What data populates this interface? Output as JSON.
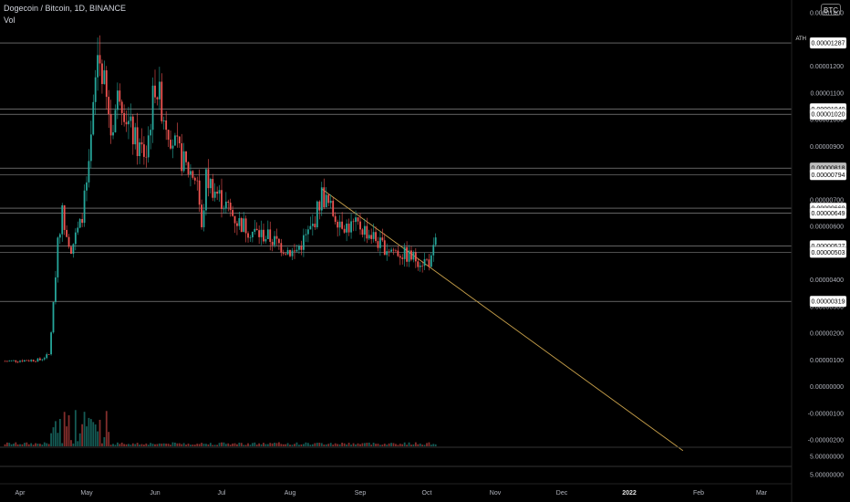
{
  "header": {
    "title": "Dogecoin / Bitcoin, 1D, BINANCE",
    "volume_label": "Vol",
    "currency": "BTC"
  },
  "colors": {
    "up": "#26a69a",
    "down": "#ef5350",
    "level_line": "#9e9e9e",
    "trendline": "#c8a04a",
    "axis_text": "#b2b5be"
  },
  "chart_data": {
    "type": "candlestick",
    "title": "Dogecoin / Bitcoin, 1D, BINANCE",
    "x_labels": [
      "Apr",
      "May",
      "Jun",
      "Jul",
      "Aug",
      "Sep",
      "Oct",
      "Nov",
      "Dec",
      "2022",
      "Feb",
      "Mar"
    ],
    "x_label_bold": "2022",
    "y_ticks": [
      1.4e-05,
      1.3e-05,
      1.2e-05,
      1.1e-05,
      1e-05,
      9e-06,
      8e-06,
      7e-06,
      6e-06,
      5e-06,
      4e-06,
      3e-06,
      2e-06,
      1e-06,
      0.0,
      -1e-06,
      -2e-06
    ],
    "y_tick_labels": [
      "0.00001400",
      "0.00001300",
      "0.00001200",
      "0.00001100",
      "0.00001000",
      "0.00000900",
      "0.00000800",
      "0.00000700",
      "0.00000600",
      "0.00000500",
      "0.00000400",
      "0.00000300",
      "0.00000200",
      "0.00000100",
      "0.00000000",
      "-0.00000100",
      "-0.00000200"
    ],
    "ylim": [
      -2e-06,
      1.4e-05
    ],
    "levels": [
      {
        "value": 1.287e-05,
        "label": "0.00001287",
        "tag": "ATH"
      },
      {
        "value": 1.04e-05,
        "label": "0.00001040"
      },
      {
        "value": 1.02e-05,
        "label": "0.00001020"
      },
      {
        "value": 8.18e-06,
        "label": "0.00000818",
        "highlight": true
      },
      {
        "value": 7.94e-06,
        "label": "0.00000794"
      },
      {
        "value": 6.68e-06,
        "label": "0.00000668"
      },
      {
        "value": 6.49e-06,
        "label": "0.00000649"
      },
      {
        "value": 5.27e-06,
        "label": "0.00000527"
      },
      {
        "value": 5.03e-06,
        "label": "0.00000503"
      },
      {
        "value": 3.19e-06,
        "label": "0.00000319"
      }
    ],
    "volume_scale_labels": [
      "5.00000000",
      "5.00000000"
    ],
    "trendline": {
      "from": {
        "date": "2021-08-15",
        "value": 7.4e-06
      },
      "to": {
        "date": "2022-01-25",
        "value": -2.4e-06
      }
    },
    "price_path": [
      {
        "date": "2021-03-25",
        "close": 9.5e-07
      },
      {
        "date": "2021-04-10",
        "close": 1e-06
      },
      {
        "date": "2021-04-14",
        "close": 1.2e-06
      },
      {
        "date": "2021-04-16",
        "close": 3e-06
      },
      {
        "date": "2021-04-18",
        "close": 5.6e-06
      },
      {
        "date": "2021-04-20",
        "close": 6.5e-06
      },
      {
        "date": "2021-04-24",
        "close": 5.2e-06
      },
      {
        "date": "2021-04-28",
        "close": 6e-06
      },
      {
        "date": "2021-05-02",
        "close": 8e-06
      },
      {
        "date": "2021-05-06",
        "close": 1.25e-05
      },
      {
        "date": "2021-05-08",
        "close": 1.18e-05
      },
      {
        "date": "2021-05-12",
        "close": 9.5e-06
      },
      {
        "date": "2021-05-16",
        "close": 1.12e-05
      },
      {
        "date": "2021-05-20",
        "close": 9.8e-06
      },
      {
        "date": "2021-05-24",
        "close": 9e-06
      },
      {
        "date": "2021-05-28",
        "close": 8.7e-06
      },
      {
        "date": "2021-06-01",
        "close": 1.14e-05
      },
      {
        "date": "2021-06-05",
        "close": 1.02e-05
      },
      {
        "date": "2021-06-10",
        "close": 9e-06
      },
      {
        "date": "2021-06-15",
        "close": 8.2e-06
      },
      {
        "date": "2021-06-20",
        "close": 7.8e-06
      },
      {
        "date": "2021-06-22",
        "close": 5.8e-06
      },
      {
        "date": "2021-06-24",
        "close": 7.8e-06
      },
      {
        "date": "2021-07-01",
        "close": 7e-06
      },
      {
        "date": "2021-07-08",
        "close": 6.2e-06
      },
      {
        "date": "2021-07-15",
        "close": 5.8e-06
      },
      {
        "date": "2021-07-22",
        "close": 5.6e-06
      },
      {
        "date": "2021-07-29",
        "close": 5.2e-06
      },
      {
        "date": "2021-08-03",
        "close": 5e-06
      },
      {
        "date": "2021-08-08",
        "close": 5.6e-06
      },
      {
        "date": "2021-08-11",
        "close": 6e-06
      },
      {
        "date": "2021-08-15",
        "close": 7.2e-06
      },
      {
        "date": "2021-08-20",
        "close": 6.5e-06
      },
      {
        "date": "2021-08-26",
        "close": 6e-06
      },
      {
        "date": "2021-09-01",
        "close": 6e-06
      },
      {
        "date": "2021-09-07",
        "close": 5.6e-06
      },
      {
        "date": "2021-09-10",
        "close": 5.3e-06
      },
      {
        "date": "2021-09-16",
        "close": 5.1e-06
      },
      {
        "date": "2021-09-22",
        "close": 4.9e-06
      },
      {
        "date": "2021-09-29",
        "close": 4.7e-06
      },
      {
        "date": "2021-10-03",
        "close": 4.7e-06
      },
      {
        "date": "2021-10-05",
        "close": 5.4e-06
      }
    ]
  }
}
